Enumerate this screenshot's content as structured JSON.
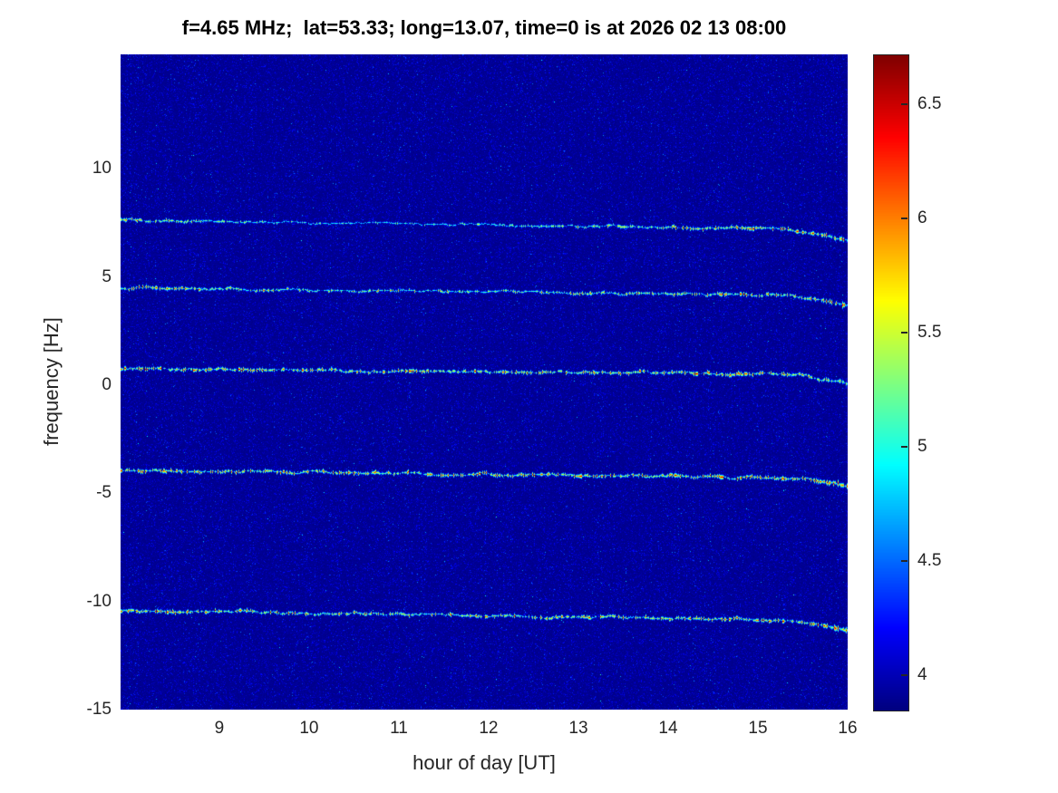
{
  "chart_data": {
    "type": "heatmap",
    "title": "f=4.65 MHz;  lat=53.33; long=13.07, time=0 is at 2026 02 13 08:00",
    "xlabel": "hour of day [UT]",
    "ylabel": "frequency [Hz]",
    "colormap": "jet",
    "x_range": [
      7.9,
      16
    ],
    "y_range": [
      -15,
      15.3
    ],
    "x_ticks": [
      9,
      10,
      11,
      12,
      13,
      14,
      15,
      16
    ],
    "y_ticks": [
      -15,
      -10,
      -5,
      0,
      5,
      10
    ],
    "colorbar": {
      "range": [
        3.85,
        6.72
      ],
      "ticks": [
        4,
        4.5,
        5,
        5.5,
        6,
        6.5
      ]
    },
    "background_value": 3.9,
    "spectral_lines": [
      {
        "label": "line near +7.5 Hz",
        "f_start": 7.65,
        "f_end": 7.2,
        "end_droop": 0.5,
        "envelope": [
          0.8,
          0.55,
          0.35,
          0.3,
          0.35,
          0.55,
          0.8,
          0.95,
          1.0
        ]
      },
      {
        "label": "line near +4.4 Hz",
        "f_start": 4.5,
        "f_end": 4.15,
        "end_droop": 0.45,
        "envelope": [
          0.9,
          0.7,
          0.6,
          0.55,
          0.6,
          0.65,
          0.7,
          0.85,
          1.0
        ]
      },
      {
        "label": "line near +0.6 Hz",
        "f_start": 0.75,
        "f_end": 0.5,
        "end_droop": 0.4,
        "envelope": [
          1.0,
          0.95,
          0.9,
          0.9,
          0.9,
          0.9,
          0.95,
          1.0,
          1.0
        ]
      },
      {
        "label": "line near -4.1 Hz",
        "f_start": -3.95,
        "f_end": -4.3,
        "end_droop": 0.35,
        "envelope": [
          1.0,
          0.95,
          0.9,
          0.9,
          0.9,
          0.9,
          0.95,
          1.0,
          1.0
        ]
      },
      {
        "label": "line near -10.6 Hz",
        "f_start": -10.45,
        "f_end": -10.9,
        "end_droop": 0.45,
        "envelope": [
          1.0,
          0.9,
          0.85,
          0.8,
          0.8,
          0.8,
          0.85,
          0.95,
          1.0
        ]
      }
    ]
  }
}
